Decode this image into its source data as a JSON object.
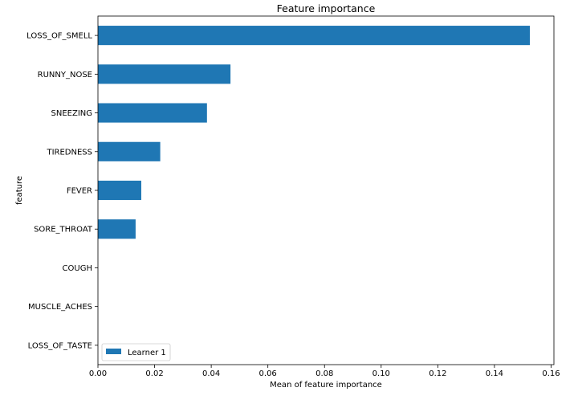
{
  "chart_data": {
    "type": "bar",
    "orientation": "horizontal",
    "title": "Feature importance",
    "xlabel": "Mean of feature importance",
    "ylabel": "feature",
    "categories": [
      "LOSS_OF_SMELL",
      "RUNNY_NOSE",
      "SNEEZING",
      "TIREDNESS",
      "FEVER",
      "SORE_THROAT",
      "COUGH",
      "MUSCLE_ACHES",
      "LOSS_OF_TASTE"
    ],
    "series": [
      {
        "name": "Learner 1",
        "values": [
          0.1525,
          0.0468,
          0.0385,
          0.022,
          0.0153,
          0.0133,
          0,
          0,
          0
        ],
        "color": "#1f77b4"
      }
    ],
    "xlim": [
      0,
      0.161
    ],
    "xticks": [
      "0.00",
      "0.02",
      "0.04",
      "0.06",
      "0.08",
      "0.10",
      "0.12",
      "0.14",
      "0.16"
    ],
    "xtick_values": [
      0,
      0.02,
      0.04,
      0.06,
      0.08,
      0.1,
      0.12,
      0.14,
      0.16
    ],
    "grid": false,
    "legend_position": "lower-left"
  }
}
